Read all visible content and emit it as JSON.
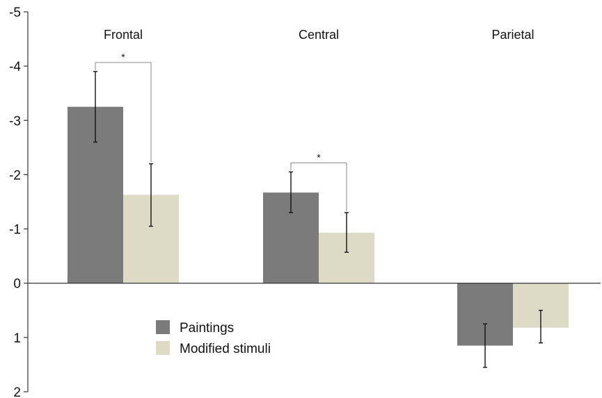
{
  "chart_data": {
    "type": "bar",
    "categories": [
      "Frontal",
      "Central",
      "Parietal"
    ],
    "series": [
      {
        "name": "Paintings",
        "color": "#7b7b7b",
        "values": [
          -3.25,
          -1.67,
          1.15
        ],
        "error": [
          [
            -2.6,
            -3.9
          ],
          [
            -1.3,
            -2.05
          ],
          [
            0.75,
            1.55
          ]
        ]
      },
      {
        "name": "Modified stimuli",
        "color": "#dddbc6",
        "values": [
          -1.63,
          -0.93,
          0.82
        ],
        "error": [
          [
            -1.05,
            -2.2
          ],
          [
            -0.57,
            -1.3
          ],
          [
            0.5,
            1.1
          ]
        ]
      }
    ],
    "ylim": [
      -5,
      2
    ],
    "yticks": [
      -5,
      -4,
      -3,
      -2,
      -1,
      0,
      1,
      2
    ],
    "y_inverted": true,
    "significance": [
      {
        "group": "Frontal",
        "label": "*"
      },
      {
        "group": "Central",
        "label": "*"
      }
    ],
    "legend_position": "lower-left",
    "xlabel": "",
    "ylabel": ""
  }
}
